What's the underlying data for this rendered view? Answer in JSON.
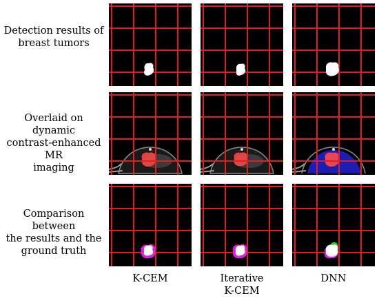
{
  "row_labels": [
    "Detection results of breast tumors",
    "Overlaid on dynamic contrast-enhanced MR imaging",
    "Comparison between the results and the ground truth"
  ],
  "row_label_lines": [
    [
      "Detection results of",
      "breast tumors"
    ],
    [
      "Overlaid on dynamic",
      "contrast-enhanced MR",
      "imaging"
    ],
    [
      "Comparison between",
      "the results and the",
      "ground truth"
    ]
  ],
  "columns": [
    {
      "lines": [
        "K-CEM"
      ]
    },
    {
      "lines": [
        "Iterative",
        "K-CEM"
      ]
    },
    {
      "lines": [
        "DNN"
      ]
    }
  ],
  "colors": {
    "grid": "#e0201e",
    "background": "#000000",
    "tumor_mask": "#ffffff",
    "overlay_red": "#ff4a4a",
    "overlay_blue": "#2020c8",
    "comparison_magenta": "#e020e0",
    "comparison_green": "#20d020"
  }
}
